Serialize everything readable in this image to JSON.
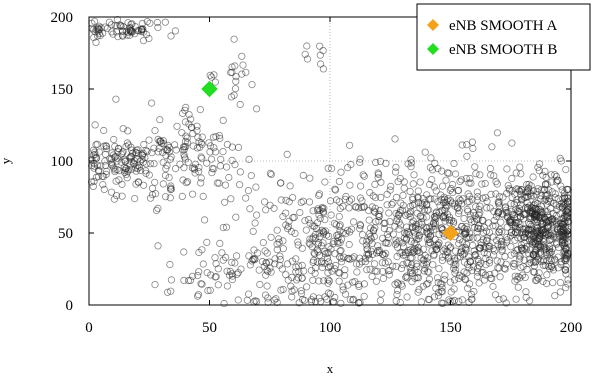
{
  "chart_data": {
    "type": "scatter",
    "title": "",
    "xlabel": "x",
    "ylabel": "y",
    "xlim": [
      0,
      200
    ],
    "ylim": [
      0,
      200
    ],
    "xticks": [
      "0",
      "50",
      "100",
      "150",
      "200"
    ],
    "yticks": [
      "0",
      "50",
      "100",
      "150",
      "200"
    ],
    "grid": {
      "dotted_reference_lines": {
        "x": 100,
        "y": 100
      }
    },
    "legend": {
      "position": "top-right"
    },
    "background_points": {
      "marker": "open-circle",
      "color": "#222222",
      "clusters": [
        {
          "cx": 188,
          "cy": 55,
          "sx": 9,
          "sy": 18,
          "n": 520
        },
        {
          "cx": 150,
          "cy": 45,
          "sx": 15,
          "sy": 25,
          "n": 430
        },
        {
          "cx": 100,
          "cy": 35,
          "sx": 22,
          "sy": 22,
          "n": 320
        },
        {
          "cx": 15,
          "cy": 100,
          "sx": 10,
          "sy": 10,
          "n": 160
        },
        {
          "cx": 45,
          "cy": 105,
          "sx": 10,
          "sy": 18,
          "n": 110
        },
        {
          "cx": 15,
          "cy": 191,
          "sx": 12,
          "sy": 4,
          "n": 75
        },
        {
          "cx": 125,
          "cy": 65,
          "sx": 28,
          "sy": 20,
          "n": 220
        },
        {
          "cx": 60,
          "cy": 20,
          "sx": 15,
          "sy": 12,
          "n": 60
        },
        {
          "cx": 60,
          "cy": 160,
          "sx": 5,
          "sy": 12,
          "n": 20
        },
        {
          "cx": 95,
          "cy": 172,
          "sx": 5,
          "sy": 6,
          "n": 8
        }
      ]
    },
    "series": [
      {
        "name": "eNB SMOOTH A",
        "marker": "diamond",
        "color": "#f5a21b",
        "x": [
          150
        ],
        "y": [
          50
        ]
      },
      {
        "name": "eNB SMOOTH B",
        "marker": "diamond",
        "color": "#22dd22",
        "x": [
          50
        ],
        "y": [
          150
        ]
      }
    ]
  }
}
